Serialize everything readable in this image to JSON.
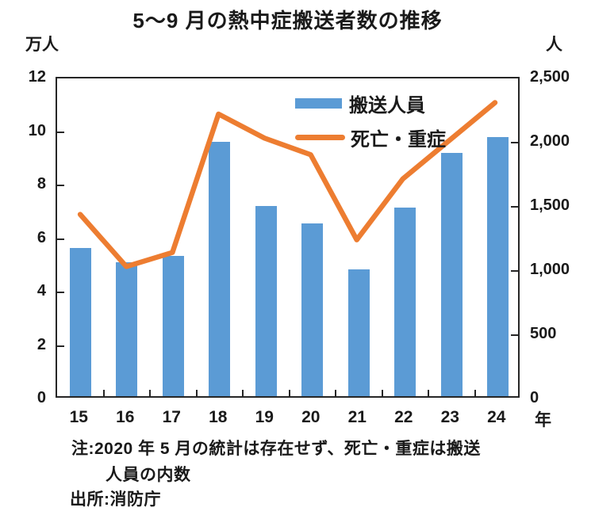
{
  "chart": {
    "title": "5〜9 月の熱中症搬送者数の推移",
    "notes": [
      "注:2020 年 5 月の統計は存在せず、死亡・重症は搬送",
      "人員の内数",
      "出所:消防庁"
    ]
  },
  "chart_data": {
    "type": "bar",
    "title": "5〜9 月の熱中症搬送者数の推移",
    "categories": [
      "15",
      "16",
      "17",
      "18",
      "19",
      "20",
      "21",
      "22",
      "23",
      "24"
    ],
    "x_unit": "年",
    "series": [
      {
        "name": "搬送人員",
        "type": "bar",
        "axis": "left",
        "color": "#5B9BD5",
        "values": [
          5.55,
          5.0,
          5.25,
          9.5,
          7.1,
          6.45,
          4.75,
          7.05,
          9.1,
          9.7
        ]
      },
      {
        "name": "死亡・重症",
        "type": "line",
        "axis": "right",
        "color": "#ED7D31",
        "values": [
          1430,
          1020,
          1130,
          2220,
          2030,
          1900,
          1230,
          1710,
          2010,
          2310
        ]
      }
    ],
    "left_axis": {
      "unit": "万人",
      "min": 0,
      "max": 12,
      "ticks": [
        12,
        10,
        8,
        6,
        4,
        2,
        0
      ]
    },
    "right_axis": {
      "unit": "人",
      "min": 0,
      "max": 2500,
      "ticks": [
        "2,500",
        "2,000",
        "1,500",
        "1,000",
        "500",
        "0"
      ]
    },
    "legend_position": "top-right-inside",
    "grid": false
  }
}
